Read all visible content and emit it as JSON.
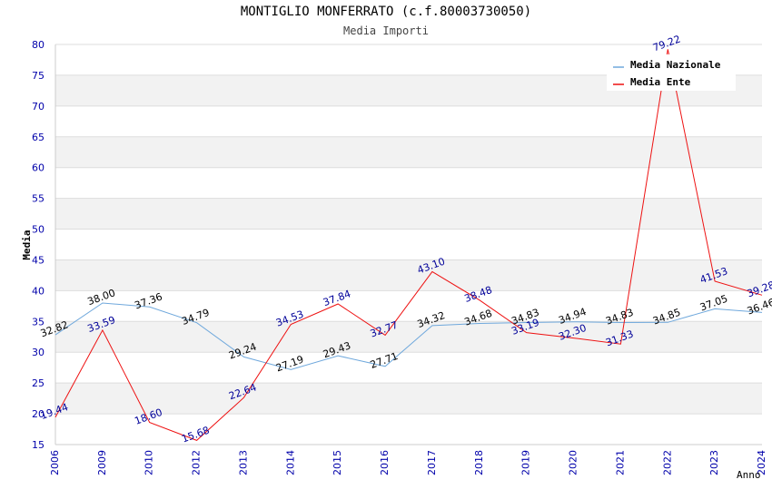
{
  "chart_data": {
    "type": "line",
    "title": "MONTIGLIO MONFERRATO (c.f.80003730050)",
    "subtitle": "Media Importi",
    "xlabel": "Anno",
    "ylabel": "Media",
    "ylim": [
      15,
      80
    ],
    "yticks": [
      "15",
      "20",
      "25",
      "30",
      "35",
      "40",
      "45",
      "50",
      "55",
      "60",
      "65",
      "70",
      "75",
      "80"
    ],
    "categories": [
      "2006",
      "2009",
      "2010",
      "2012",
      "2013",
      "2014",
      "2015",
      "2016",
      "2017",
      "2018",
      "2019",
      "2020",
      "2021",
      "2022",
      "2023",
      "2024"
    ],
    "grid": "horizontal bands",
    "legend_position": "top-right",
    "series": [
      {
        "name": "Media Nazionale",
        "color": "#6fa8dc",
        "label_color": "#000000",
        "values": [
          32.82,
          38.0,
          37.36,
          34.79,
          29.24,
          27.19,
          29.43,
          27.71,
          34.32,
          34.68,
          34.83,
          34.94,
          34.83,
          34.85,
          37.05,
          36.46
        ],
        "labels": [
          "32.82",
          "38.00",
          "37.36",
          "34.79",
          "29.24",
          "27.19",
          "29.43",
          "27.71",
          "34.32",
          "34.68",
          "34.83",
          "34.94",
          "34.83",
          "34.85",
          "37.05",
          "36.46"
        ]
      },
      {
        "name": "Media Ente",
        "color": "#ee1111",
        "label_color": "#000099",
        "values": [
          19.44,
          33.59,
          18.6,
          15.68,
          22.64,
          34.53,
          37.84,
          32.77,
          43.1,
          38.48,
          33.19,
          32.3,
          31.33,
          79.22,
          41.53,
          39.28
        ],
        "labels": [
          "19.44",
          "33.59",
          "18.60",
          "15.68",
          "22.64",
          "34.53",
          "37.84",
          "32.77",
          "43.10",
          "38.48",
          "33.19",
          "32.30",
          "31.33",
          "79.22",
          "41.53",
          "39.28"
        ]
      }
    ]
  }
}
